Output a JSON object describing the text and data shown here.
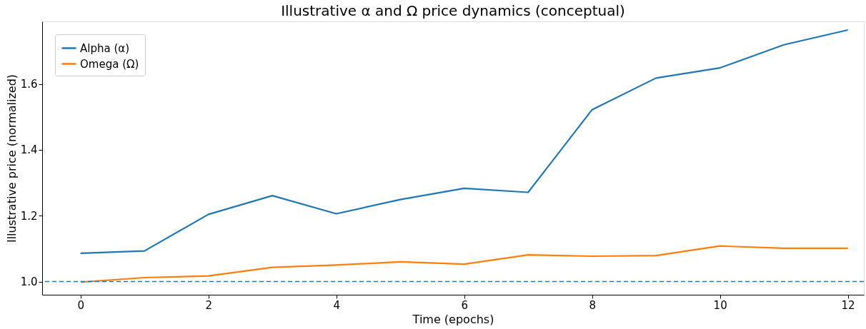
{
  "chart_data": {
    "type": "line",
    "title": "Illustrative α and Ω price dynamics (conceptual)",
    "xlabel": "Time (epochs)",
    "ylabel": "Illustrative price (normalized)",
    "x": [
      0,
      1,
      2,
      3,
      4,
      5,
      6,
      7,
      8,
      9,
      10,
      11,
      12
    ],
    "series": [
      {
        "name": "Alpha (α)",
        "color": "#1f77b4",
        "values": [
          1.086,
          1.093,
          1.204,
          1.261,
          1.206,
          1.249,
          1.283,
          1.271,
          1.522,
          1.618,
          1.649,
          1.719,
          1.764
        ]
      },
      {
        "name": "Omega (Ω)",
        "color": "#ff7f0e",
        "values": [
          0.998,
          1.012,
          1.017,
          1.043,
          1.05,
          1.06,
          1.053,
          1.081,
          1.077,
          1.079,
          1.108,
          1.101,
          1.101
        ]
      }
    ],
    "xlim": [
      -0.6,
      12.25
    ],
    "ylim": [
      0.96,
      1.79
    ],
    "xticks": [
      0,
      2,
      4,
      6,
      8,
      10,
      12
    ],
    "yticks": [
      {
        "value": 1.0,
        "label": "1.0"
      },
      {
        "value": 1.2,
        "label": "1.2"
      },
      {
        "value": 1.4,
        "label": "1.4"
      },
      {
        "value": 1.6,
        "label": "1.6"
      }
    ],
    "ref_lines": [
      {
        "axis": "y",
        "value": 1.0,
        "color": "#1f77b4",
        "line_style": "dashed"
      }
    ],
    "legend": "top left",
    "grid": false,
    "marker": "none",
    "line_style": "solid"
  }
}
